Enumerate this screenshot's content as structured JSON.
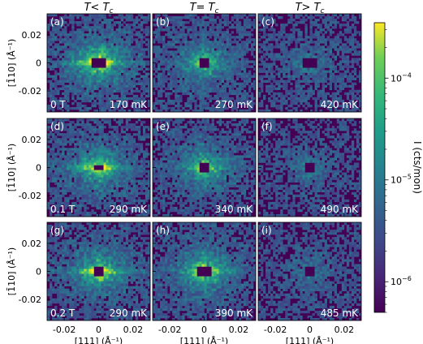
{
  "chart_data": {
    "type": "heatmap",
    "title": "",
    "column_titles": [
      "T< T",
      "T= T",
      "T> T"
    ],
    "column_title_subscript": "c",
    "xlabel": "[111] (Å⁻¹)",
    "ylabel": "[1̄10] (Å⁻¹)",
    "xlim": [
      -0.03,
      0.03
    ],
    "ylim": [
      -0.035,
      0.035
    ],
    "xticks": [
      "-0.02",
      "0",
      "0.02"
    ],
    "yticks": [
      "0.02",
      "0",
      "-0.02"
    ],
    "rows": [
      {
        "field": "0 T",
        "panels": [
          {
            "label": "(a)",
            "temperature": "170 mK",
            "intensity": 1.0,
            "streak": 1.0,
            "core_radius": 0.004
          },
          {
            "label": "(b)",
            "temperature": "270 mK",
            "intensity": 0.75,
            "streak": 0.35,
            "core_radius": 0.003
          },
          {
            "label": "(c)",
            "temperature": "420 mK",
            "intensity": 0.35,
            "streak": 0.0,
            "core_radius": 0.004
          }
        ]
      },
      {
        "field": "0.1 T",
        "panels": [
          {
            "label": "(d)",
            "temperature": "290 mK",
            "intensity": 0.85,
            "streak": 1.0,
            "core_radius": 0.0025
          },
          {
            "label": "(e)",
            "temperature": "340 mK",
            "intensity": 0.8,
            "streak": 0.3,
            "core_radius": 0.003
          },
          {
            "label": "(f)",
            "temperature": "490 mK",
            "intensity": 0.3,
            "streak": 0.0,
            "core_radius": 0.003
          }
        ]
      },
      {
        "field": "0.2 T",
        "panels": [
          {
            "label": "(g)",
            "temperature": "290 mK",
            "intensity": 0.9,
            "streak": 1.0,
            "core_radius": 0.003
          },
          {
            "label": "(h)",
            "temperature": "390 mK",
            "intensity": 0.95,
            "streak": 0.5,
            "core_radius": 0.004
          },
          {
            "label": "(i)",
            "temperature": "485 mK",
            "intensity": 0.3,
            "streak": 0.0,
            "core_radius": 0.003
          }
        ]
      }
    ],
    "colorbar": {
      "label": "I (cts/mon)",
      "scale": "log",
      "ticks": [
        "10",
        "10",
        "10"
      ],
      "tick_exponents": [
        "−4",
        "−5",
        "−6"
      ],
      "tick_values": [
        0.0001,
        1e-05,
        1e-06
      ],
      "range": [
        5e-07,
        0.00035
      ],
      "colormap": "viridis"
    },
    "grid": false
  }
}
